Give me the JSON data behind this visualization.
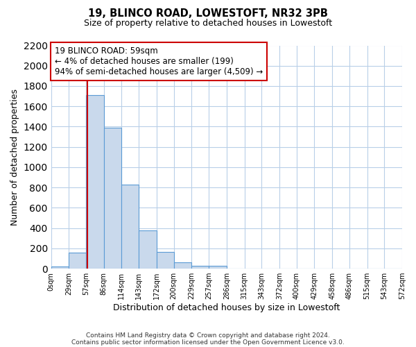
{
  "title": "19, BLINCO ROAD, LOWESTOFT, NR32 3PB",
  "subtitle": "Size of property relative to detached houses in Lowestoft",
  "xlabel": "Distribution of detached houses by size in Lowestoft",
  "ylabel": "Number of detached properties",
  "bin_edges": [
    0,
    29,
    57,
    86,
    114,
    143,
    172,
    200,
    229,
    257,
    286,
    315,
    343,
    372,
    400,
    429,
    458,
    486,
    515,
    543,
    572
  ],
  "bin_heights": [
    20,
    155,
    1710,
    1390,
    830,
    380,
    165,
    65,
    30,
    25,
    0,
    0,
    0,
    0,
    0,
    0,
    0,
    0,
    0,
    0
  ],
  "bar_color": "#c9d9ec",
  "bar_edge_color": "#5b9bd5",
  "property_value": 59,
  "vline_color": "#cc0000",
  "annotation_line1": "19 BLINCO ROAD: 59sqm",
  "annotation_line2": "← 4% of detached houses are smaller (199)",
  "annotation_line3": "94% of semi-detached houses are larger (4,509) →",
  "annotation_box_edge_color": "#cc0000",
  "ylim": [
    0,
    2200
  ],
  "yticks": [
    0,
    200,
    400,
    600,
    800,
    1000,
    1200,
    1400,
    1600,
    1800,
    2000,
    2200
  ],
  "tick_labels": [
    "0sqm",
    "29sqm",
    "57sqm",
    "86sqm",
    "114sqm",
    "143sqm",
    "172sqm",
    "200sqm",
    "229sqm",
    "257sqm",
    "286sqm",
    "315sqm",
    "343sqm",
    "372sqm",
    "400sqm",
    "429sqm",
    "458sqm",
    "486sqm",
    "515sqm",
    "543sqm",
    "572sqm"
  ],
  "footer_line1": "Contains HM Land Registry data © Crown copyright and database right 2024.",
  "footer_line2": "Contains public sector information licensed under the Open Government Licence v3.0.",
  "background_color": "#ffffff",
  "grid_color": "#b8cfe8"
}
